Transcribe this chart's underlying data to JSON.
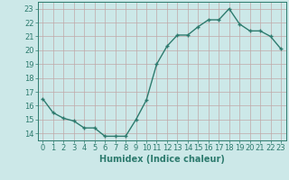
{
  "x": [
    0,
    1,
    2,
    3,
    4,
    5,
    6,
    7,
    8,
    9,
    10,
    11,
    12,
    13,
    14,
    15,
    16,
    17,
    18,
    19,
    20,
    21,
    22,
    23
  ],
  "y": [
    16.5,
    15.5,
    15.1,
    14.9,
    14.4,
    14.4,
    13.8,
    13.8,
    13.8,
    15.0,
    16.4,
    19.0,
    20.3,
    21.1,
    21.1,
    21.7,
    22.2,
    22.2,
    23.0,
    21.9,
    21.4,
    21.4,
    21.0,
    20.1
  ],
  "line_color": "#2d7b6e",
  "marker_color": "#2d7b6e",
  "bg_color": "#cce8e8",
  "grid_color": "#c0a8a8",
  "xlabel": "Humidex (Indice chaleur)",
  "ylim": [
    13.5,
    23.5
  ],
  "xlim": [
    -0.5,
    23.5
  ],
  "yticks": [
    14,
    15,
    16,
    17,
    18,
    19,
    20,
    21,
    22,
    23
  ],
  "xticks": [
    0,
    1,
    2,
    3,
    4,
    5,
    6,
    7,
    8,
    9,
    10,
    11,
    12,
    13,
    14,
    15,
    16,
    17,
    18,
    19,
    20,
    21,
    22,
    23
  ],
  "axis_color": "#2d7b6e",
  "tick_color": "#2d7b6e",
  "label_fontsize": 7,
  "tick_fontsize": 6,
  "line_width": 1.0,
  "marker_size": 2.5,
  "marker_style": "+"
}
